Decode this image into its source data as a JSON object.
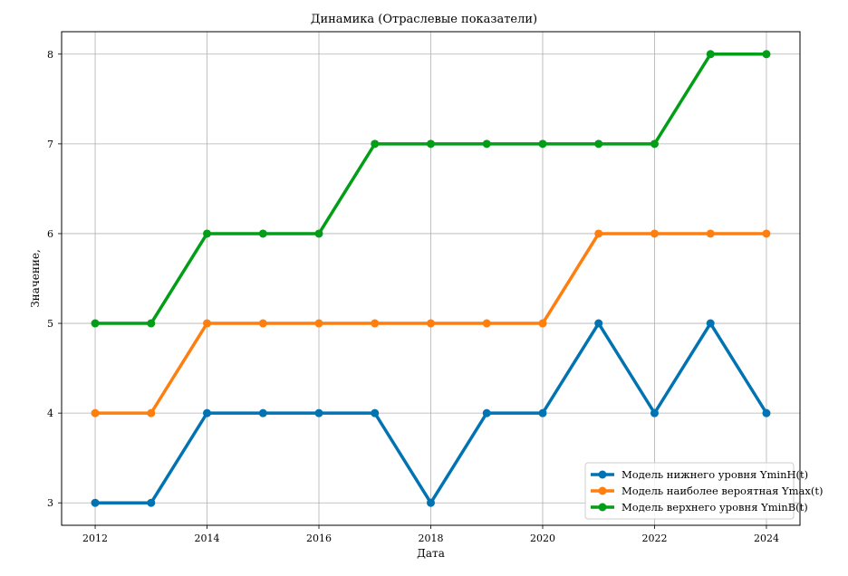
{
  "chart_data": {
    "type": "line",
    "title": "Динамика (Отраслевые показатели)",
    "xlabel": "Дата",
    "ylabel": "Значение,",
    "x": [
      2012,
      2013,
      2014,
      2015,
      2016,
      2017,
      2018,
      2019,
      2020,
      2021,
      2022,
      2023,
      2024
    ],
    "xticks": [
      2012,
      2014,
      2016,
      2018,
      2020,
      2022,
      2024
    ],
    "yticks": [
      3,
      4,
      5,
      6,
      7,
      8
    ],
    "xlim": [
      2011.4,
      2024.6
    ],
    "ylim": [
      2.75,
      8.25
    ],
    "grid": true,
    "legend_position": "lower-right",
    "series": [
      {
        "name": "Модель нижнего уровня YminH(t)",
        "color": "#0173b2",
        "values": [
          3,
          3,
          4,
          4,
          4,
          4,
          3,
          4,
          4,
          5,
          4,
          5,
          4
        ]
      },
      {
        "name": "Модель наиболее вероятная Ymax(t)",
        "color": "#ff7f0e",
        "values": [
          4,
          4,
          5,
          5,
          5,
          5,
          5,
          5,
          5,
          6,
          6,
          6,
          6
        ]
      },
      {
        "name": "Модель верхнего уровня YminB(t)",
        "color": "#029e17",
        "values": [
          5,
          5,
          6,
          6,
          6,
          7,
          7,
          7,
          7,
          7,
          7,
          8,
          8
        ]
      }
    ]
  }
}
